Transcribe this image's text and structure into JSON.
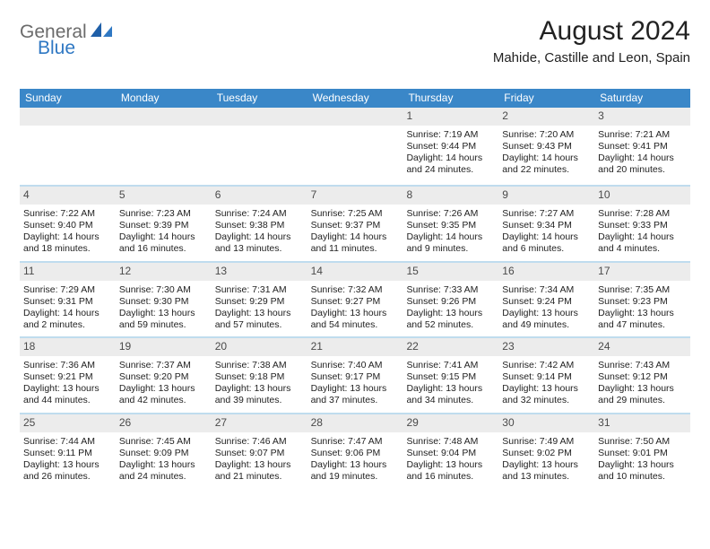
{
  "brand": {
    "part1": "General",
    "part2": "Blue"
  },
  "colors": {
    "header_blue": "#3a87c8",
    "daynum_bg": "#ececec",
    "week_divider": "#bfdcee",
    "text": "#222222",
    "logo_gray": "#6b6b6b",
    "logo_blue": "#2f78c3",
    "background": "#ffffff"
  },
  "typography": {
    "title_fontsize": 30,
    "location_fontsize": 15,
    "dow_fontsize": 12,
    "daynum_fontsize": 12,
    "body_fontsize": 10.5
  },
  "title": "August 2024",
  "location": "Mahide, Castille and Leon, Spain",
  "dow": [
    "Sunday",
    "Monday",
    "Tuesday",
    "Wednesday",
    "Thursday",
    "Friday",
    "Saturday"
  ],
  "weeks": [
    [
      null,
      null,
      null,
      null,
      {
        "n": "1",
        "sunrise": "7:19 AM",
        "sunset": "9:44 PM",
        "day_h": 14,
        "day_m": 24
      },
      {
        "n": "2",
        "sunrise": "7:20 AM",
        "sunset": "9:43 PM",
        "day_h": 14,
        "day_m": 22
      },
      {
        "n": "3",
        "sunrise": "7:21 AM",
        "sunset": "9:41 PM",
        "day_h": 14,
        "day_m": 20
      }
    ],
    [
      {
        "n": "4",
        "sunrise": "7:22 AM",
        "sunset": "9:40 PM",
        "day_h": 14,
        "day_m": 18
      },
      {
        "n": "5",
        "sunrise": "7:23 AM",
        "sunset": "9:39 PM",
        "day_h": 14,
        "day_m": 16
      },
      {
        "n": "6",
        "sunrise": "7:24 AM",
        "sunset": "9:38 PM",
        "day_h": 14,
        "day_m": 13
      },
      {
        "n": "7",
        "sunrise": "7:25 AM",
        "sunset": "9:37 PM",
        "day_h": 14,
        "day_m": 11
      },
      {
        "n": "8",
        "sunrise": "7:26 AM",
        "sunset": "9:35 PM",
        "day_h": 14,
        "day_m": 9
      },
      {
        "n": "9",
        "sunrise": "7:27 AM",
        "sunset": "9:34 PM",
        "day_h": 14,
        "day_m": 6
      },
      {
        "n": "10",
        "sunrise": "7:28 AM",
        "sunset": "9:33 PM",
        "day_h": 14,
        "day_m": 4
      }
    ],
    [
      {
        "n": "11",
        "sunrise": "7:29 AM",
        "sunset": "9:31 PM",
        "day_h": 14,
        "day_m": 2
      },
      {
        "n": "12",
        "sunrise": "7:30 AM",
        "sunset": "9:30 PM",
        "day_h": 13,
        "day_m": 59
      },
      {
        "n": "13",
        "sunrise": "7:31 AM",
        "sunset": "9:29 PM",
        "day_h": 13,
        "day_m": 57
      },
      {
        "n": "14",
        "sunrise": "7:32 AM",
        "sunset": "9:27 PM",
        "day_h": 13,
        "day_m": 54
      },
      {
        "n": "15",
        "sunrise": "7:33 AM",
        "sunset": "9:26 PM",
        "day_h": 13,
        "day_m": 52
      },
      {
        "n": "16",
        "sunrise": "7:34 AM",
        "sunset": "9:24 PM",
        "day_h": 13,
        "day_m": 49
      },
      {
        "n": "17",
        "sunrise": "7:35 AM",
        "sunset": "9:23 PM",
        "day_h": 13,
        "day_m": 47
      }
    ],
    [
      {
        "n": "18",
        "sunrise": "7:36 AM",
        "sunset": "9:21 PM",
        "day_h": 13,
        "day_m": 44
      },
      {
        "n": "19",
        "sunrise": "7:37 AM",
        "sunset": "9:20 PM",
        "day_h": 13,
        "day_m": 42
      },
      {
        "n": "20",
        "sunrise": "7:38 AM",
        "sunset": "9:18 PM",
        "day_h": 13,
        "day_m": 39
      },
      {
        "n": "21",
        "sunrise": "7:40 AM",
        "sunset": "9:17 PM",
        "day_h": 13,
        "day_m": 37
      },
      {
        "n": "22",
        "sunrise": "7:41 AM",
        "sunset": "9:15 PM",
        "day_h": 13,
        "day_m": 34
      },
      {
        "n": "23",
        "sunrise": "7:42 AM",
        "sunset": "9:14 PM",
        "day_h": 13,
        "day_m": 32
      },
      {
        "n": "24",
        "sunrise": "7:43 AM",
        "sunset": "9:12 PM",
        "day_h": 13,
        "day_m": 29
      }
    ],
    [
      {
        "n": "25",
        "sunrise": "7:44 AM",
        "sunset": "9:11 PM",
        "day_h": 13,
        "day_m": 26
      },
      {
        "n": "26",
        "sunrise": "7:45 AM",
        "sunset": "9:09 PM",
        "day_h": 13,
        "day_m": 24
      },
      {
        "n": "27",
        "sunrise": "7:46 AM",
        "sunset": "9:07 PM",
        "day_h": 13,
        "day_m": 21
      },
      {
        "n": "28",
        "sunrise": "7:47 AM",
        "sunset": "9:06 PM",
        "day_h": 13,
        "day_m": 19
      },
      {
        "n": "29",
        "sunrise": "7:48 AM",
        "sunset": "9:04 PM",
        "day_h": 13,
        "day_m": 16
      },
      {
        "n": "30",
        "sunrise": "7:49 AM",
        "sunset": "9:02 PM",
        "day_h": 13,
        "day_m": 13
      },
      {
        "n": "31",
        "sunrise": "7:50 AM",
        "sunset": "9:01 PM",
        "day_h": 13,
        "day_m": 10
      }
    ]
  ],
  "labels": {
    "sunrise": "Sunrise:",
    "sunset": "Sunset:",
    "daylight": "Daylight:",
    "hours": "hours",
    "and": "and",
    "minutes": "minutes."
  }
}
